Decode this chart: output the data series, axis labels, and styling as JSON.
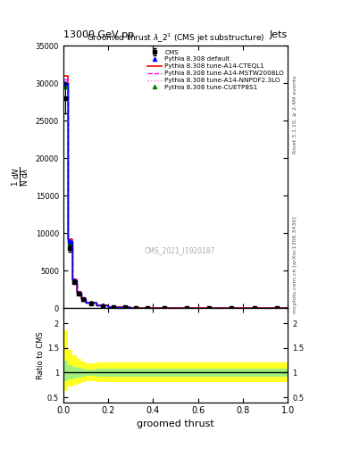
{
  "title_top": "13000 GeV pp",
  "title_top_right": "Jets",
  "plot_title": "Groomed thrust $\\lambda$_2$^1$ (CMS jet substructure)",
  "xlabel": "groomed thrust",
  "ylabel_main": "$\\frac{1}{\\mathrm{N}}\\frac{\\mathrm{d}N}{\\mathrm{d}\\lambda}$",
  "ylabel_ratio": "Ratio to CMS",
  "right_label_top": "Rivet 3.1.10, ≥ 2.4M events",
  "right_label_bottom": "mcplots.cern.ch [arXiv:1306.3436]",
  "watermark": "CMS_2021_I1920187",
  "x_bins": [
    0.0,
    0.02,
    0.04,
    0.06,
    0.08,
    0.1,
    0.15,
    0.2,
    0.25,
    0.3,
    0.35,
    0.4,
    0.5,
    0.6,
    0.7,
    0.8,
    0.9,
    1.0
  ],
  "cms_data": [
    28000,
    8000,
    3500,
    2000,
    1200,
    700,
    350,
    200,
    120,
    80,
    50,
    35,
    20,
    12,
    8,
    5,
    3
  ],
  "cms_errors": [
    2000,
    500,
    200,
    100,
    80,
    50,
    30,
    15,
    10,
    7,
    5,
    3,
    2,
    1.5,
    1,
    0.8,
    0.5
  ],
  "pythia_default": [
    30000,
    9000,
    3800,
    2100,
    1300,
    750,
    370,
    210,
    130,
    85,
    55,
    38,
    22,
    13,
    9,
    5.5,
    3.2
  ],
  "pythia_cteql1": [
    31000,
    9200,
    3900,
    2150,
    1320,
    760,
    375,
    215,
    132,
    86,
    56,
    39,
    23,
    13.5,
    9.2,
    5.8,
    3.3
  ],
  "pythia_mstw": [
    30500,
    8800,
    3750,
    2080,
    1280,
    740,
    365,
    208,
    128,
    83,
    54,
    37,
    21.5,
    12.8,
    8.8,
    5.4,
    3.1
  ],
  "pythia_nnpdf": [
    30200,
    8700,
    3700,
    2050,
    1260,
    730,
    360,
    205,
    126,
    82,
    53,
    36,
    21,
    12.5,
    8.6,
    5.2,
    3.0
  ],
  "pythia_cuetp8s1": [
    29500,
    8600,
    3650,
    2020,
    1240,
    720,
    355,
    202,
    124,
    81,
    52,
    35.5,
    20.5,
    12.2,
    8.4,
    5.1,
    2.9
  ],
  "ratio_yellow_upper": [
    1.85,
    1.45,
    1.35,
    1.28,
    1.22,
    1.18,
    1.2,
    1.2,
    1.2,
    1.2,
    1.2,
    1.2,
    1.2,
    1.2,
    1.2,
    1.2,
    1.2
  ],
  "ratio_yellow_lower": [
    0.62,
    0.72,
    0.73,
    0.78,
    0.8,
    0.83,
    0.8,
    0.8,
    0.8,
    0.8,
    0.8,
    0.8,
    0.8,
    0.8,
    0.8,
    0.8,
    0.8
  ],
  "ratio_green_upper": [
    1.25,
    1.15,
    1.12,
    1.1,
    1.08,
    1.06,
    1.08,
    1.08,
    1.08,
    1.08,
    1.08,
    1.08,
    1.08,
    1.08,
    1.08,
    1.08,
    1.08
  ],
  "ratio_green_lower": [
    0.82,
    0.87,
    0.88,
    0.9,
    0.92,
    0.94,
    0.92,
    0.92,
    0.92,
    0.92,
    0.92,
    0.92,
    0.92,
    0.92,
    0.92,
    0.92,
    0.92
  ],
  "color_cms": "black",
  "color_default": "blue",
  "color_cteql1": "red",
  "color_mstw": "#FF00FF",
  "color_nnpdf": "#FF69B4",
  "color_cuetp8s1": "green",
  "ylim_main_max": 35000,
  "ylim_ratio": [
    0.4,
    2.3
  ],
  "yticks_main": [
    0,
    5000,
    10000,
    15000,
    20000,
    25000,
    30000,
    35000
  ],
  "ytick_labels_main": [
    "0",
    "5000",
    "10000",
    "15000",
    "20000",
    "25000",
    "30000",
    "35000"
  ],
  "yticks_ratio": [
    0.5,
    1.0,
    1.5,
    2.0
  ],
  "ytick_labels_ratio": [
    "0.5",
    "1",
    "1.5",
    "2"
  ]
}
